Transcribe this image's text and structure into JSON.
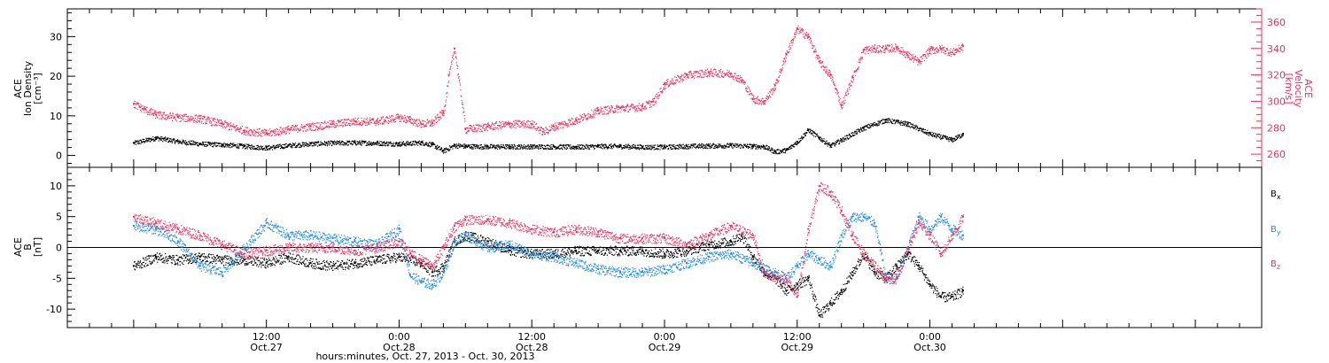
{
  "colors": {
    "black": "#000000",
    "blue": "#1f8be6",
    "red": "#e8335e"
  },
  "chart_data": [
    {
      "type": "scatter",
      "title": "",
      "xlabel": "hours:minutes, Oct. 27, 2013 - Oct. 30, 2013",
      "ylabel_left": [
        "ACE",
        "Ion Density",
        "[cm⁻³]"
      ],
      "ylabel_right": [
        "ACE",
        "Velocity",
        "[km/s]"
      ],
      "xlim": [
        -6,
        102
      ],
      "ylim_left": [
        -3,
        37
      ],
      "ylim_right": [
        250,
        370
      ],
      "yticks_left": [
        0,
        10,
        20,
        30
      ],
      "yticks_right": [
        260,
        280,
        300,
        320,
        340,
        360
      ],
      "x_ticks": [
        {
          "x": 12,
          "time": "12:00",
          "date": "Oct.27"
        },
        {
          "x": 24,
          "time": "0:00",
          "date": "Oct.28"
        },
        {
          "x": 36,
          "time": "12:00",
          "date": "Oct.28"
        },
        {
          "x": 48,
          "time": "0:00",
          "date": "Oct.29"
        },
        {
          "x": 60,
          "time": "12:00",
          "date": "Oct.29"
        },
        {
          "x": 72,
          "time": "0:00",
          "date": "Oct.30"
        }
      ],
      "series": [
        {
          "axis": "left",
          "color": "#000000",
          "x": [
            0,
            2,
            4,
            6,
            8,
            10,
            12,
            14,
            16,
            18,
            20,
            22,
            24,
            26,
            27,
            28,
            29,
            30,
            32,
            34,
            36,
            38,
            40,
            42,
            44,
            46,
            48,
            50,
            52,
            54,
            56,
            57,
            58,
            59,
            60,
            61,
            62,
            63,
            64,
            66,
            68,
            70,
            72,
            74,
            75
          ],
          "y": [
            3.2,
            4.5,
            3.6,
            3.0,
            2.8,
            2.4,
            2.0,
            2.6,
            3.0,
            3.2,
            3.3,
            3.2,
            3.0,
            3.3,
            2.8,
            1.2,
            2.6,
            2.4,
            2.3,
            2.3,
            2.3,
            2.3,
            2.2,
            2.4,
            2.4,
            2.2,
            2.2,
            2.4,
            2.5,
            2.6,
            2.4,
            2.3,
            1.0,
            1.4,
            3.5,
            6.5,
            4.5,
            2.5,
            4.0,
            7.0,
            9.0,
            8.0,
            5.5,
            4.0,
            5.5
          ]
        },
        {
          "axis": "right",
          "color": "#e8335e",
          "x": [
            0,
            1,
            2,
            4,
            6,
            8,
            10,
            12,
            14,
            16,
            18,
            20,
            22,
            24,
            25,
            26,
            27,
            28,
            28.5,
            29,
            30,
            32,
            34,
            36,
            37,
            38,
            40,
            42,
            44,
            46,
            47,
            48,
            50,
            52,
            54,
            55,
            56,
            57,
            58,
            59,
            60,
            61,
            62,
            63,
            64,
            65,
            66,
            67,
            68,
            69,
            70,
            71,
            72,
            73,
            74,
            75
          ],
          "y": [
            298,
            294,
            290,
            288,
            287,
            283,
            278,
            276,
            279,
            281,
            283,
            285,
            285,
            288,
            286,
            283,
            284,
            292,
            320,
            340,
            279,
            281,
            283,
            283,
            277,
            281,
            286,
            293,
            295,
            296,
            300,
            313,
            320,
            322,
            321,
            316,
            302,
            300,
            312,
            336,
            355,
            349,
            330,
            320,
            297,
            318,
            339,
            340,
            340,
            341,
            335,
            330,
            339,
            340,
            337,
            342
          ]
        }
      ]
    },
    {
      "type": "scatter",
      "title": "",
      "xlabel": "",
      "ylabel_left": [
        "ACE",
        "B",
        "[nT]"
      ],
      "xlim": [
        -6,
        102
      ],
      "ylim": [
        -13,
        13
      ],
      "yticks": [
        -10,
        -5,
        0,
        5,
        10
      ],
      "zero_line": true,
      "series": [
        {
          "name": "Bx",
          "color": "#000000",
          "x": [
            0,
            2,
            4,
            6,
            8,
            10,
            12,
            14,
            16,
            18,
            20,
            22,
            24,
            26,
            27,
            28,
            29,
            30,
            32,
            34,
            36,
            38,
            40,
            42,
            44,
            46,
            48,
            50,
            52,
            54,
            55,
            56,
            57,
            58,
            59,
            60,
            61,
            62,
            63,
            64,
            65,
            66,
            67,
            68,
            69,
            70,
            71,
            72,
            73,
            74,
            75
          ],
          "y": [
            -3,
            -1.5,
            -2,
            -1.5,
            -2,
            -2,
            -2.5,
            -1.5,
            -2.5,
            -3,
            -2.5,
            -2,
            -1.5,
            -2.5,
            -4,
            -3,
            1,
            2,
            1,
            -0.5,
            -1,
            -1,
            -0.5,
            -0.5,
            -0.5,
            -0.5,
            -1,
            -0.5,
            0.5,
            1,
            2,
            -1.5,
            -4,
            -5,
            -7,
            -6,
            -5,
            -11,
            -9,
            -7,
            -4,
            -1,
            -4,
            -5,
            -3,
            -1,
            -3,
            -6,
            -8,
            -8,
            -7
          ]
        },
        {
          "name": "By",
          "color": "#1f8be6",
          "x": [
            0,
            2,
            4,
            6,
            8,
            10,
            12,
            14,
            16,
            18,
            20,
            22,
            24,
            25,
            26,
            27,
            28,
            29,
            30,
            32,
            34,
            36,
            38,
            40,
            42,
            44,
            46,
            48,
            50,
            52,
            54,
            56,
            57,
            58,
            59,
            60,
            61,
            62,
            63,
            64,
            65,
            66,
            67,
            68,
            69,
            70,
            71,
            72,
            73,
            74,
            75
          ],
          "y": [
            3.5,
            3,
            1,
            -3,
            -4,
            0,
            4,
            2,
            2,
            1.5,
            1,
            0.5,
            3,
            -4.5,
            -5.5,
            -6,
            -4,
            1,
            2,
            0,
            0.5,
            -1,
            -1.5,
            -2.5,
            -3.5,
            -4,
            -4,
            -3.5,
            -2.5,
            -1.5,
            -1,
            -2.5,
            -3.5,
            -4,
            -5,
            -3,
            -1,
            -2,
            -3,
            2,
            5,
            5,
            4,
            -5,
            -5,
            0,
            5,
            3,
            5,
            3,
            2
          ]
        },
        {
          "name": "Bz",
          "color": "#e8335e",
          "x": [
            0,
            2,
            4,
            6,
            8,
            10,
            12,
            14,
            16,
            18,
            20,
            22,
            24,
            25,
            26,
            27,
            28,
            29,
            30,
            32,
            34,
            36,
            38,
            40,
            42,
            44,
            46,
            48,
            50,
            52,
            54,
            56,
            57,
            58,
            59,
            60,
            61,
            62,
            63,
            64,
            65,
            66,
            67,
            68,
            69,
            70,
            71,
            72,
            73,
            74,
            75
          ],
          "y": [
            5,
            4,
            3,
            2,
            0.5,
            -1,
            -0.5,
            0,
            0,
            0,
            -0.5,
            0,
            1,
            -1,
            -2,
            -3,
            0,
            3.5,
            4.5,
            4.5,
            4,
            3,
            2.5,
            3,
            2.5,
            1.5,
            1.5,
            1.5,
            0.5,
            2,
            3.5,
            2,
            -4,
            -5,
            -5,
            -8,
            3,
            10,
            9,
            6,
            2,
            -1,
            -3,
            -5,
            -5,
            0,
            4,
            2,
            -1,
            2,
            5
          ]
        }
      ]
    }
  ]
}
